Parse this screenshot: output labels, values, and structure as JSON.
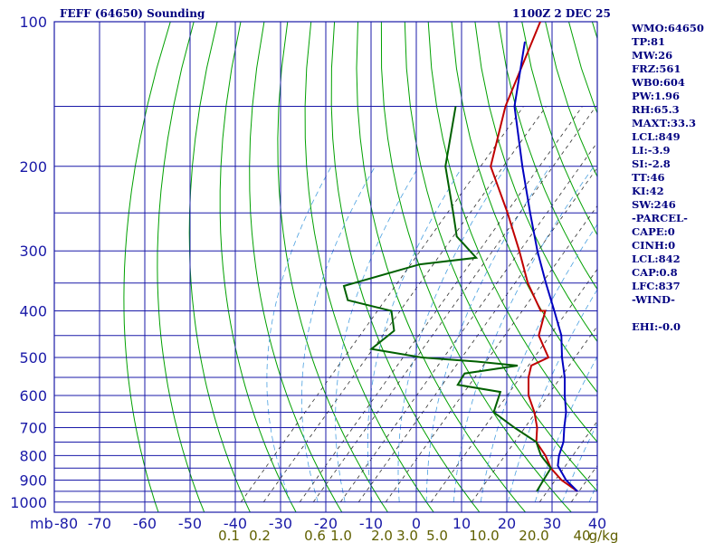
{
  "header": {
    "title": "FEFF (64650) Sounding",
    "time": "1100Z  2 DEC 25"
  },
  "stats": [
    "WMO:64650",
    "TP:81",
    "MW:26",
    "FRZ:561",
    "WB0:604",
    "PW:1.96",
    "RH:65.3",
    "MAXT:33.3",
    "LCL:849",
    "LI:-3.9",
    "SI:-2.8",
    "TT:46",
    "KI:42",
    "SW:246",
    "-PARCEL-",
    "CAPE:0",
    "CINH:0",
    "LCL:842",
    "CAP:0.8",
    "LFC:837",
    "-WIND-",
    "",
    "EHI:-0.0"
  ],
  "colors": {
    "grid": "#1a1aa8",
    "dry_adiabat": "#00a000",
    "mixing_ratio": "#303030",
    "moist_adiabat": "#4aa0e0",
    "temperature": "#c00000",
    "dewpoint": "#006000",
    "parcel": "#0000c0",
    "axis_text": "#1a1aa8",
    "mr_text": "#606000"
  },
  "chart_data": {
    "type": "line",
    "title": "FEFF (64650) Sounding",
    "x_label_prefix": "mb",
    "y_ticks": [
      "100",
      "200",
      "300",
      "400",
      "500",
      "600",
      "700",
      "800",
      "900",
      "1000"
    ],
    "x_ticks": [
      "-80",
      "-70",
      "-60",
      "-50",
      "-40",
      "-30",
      "-20",
      "-10",
      "0",
      "10",
      "20",
      "30",
      "40"
    ],
    "mixing_ratio_labels": [
      "0.1",
      "0.2",
      "0.6",
      "1.0",
      "2.0",
      "3.0",
      "5.0",
      "10.0",
      "20.0",
      "40",
      "g/kg"
    ],
    "xlim": [
      -80,
      40
    ],
    "ylim": [
      1000,
      100
    ],
    "series": [
      {
        "key": "temperature",
        "points": [
          [
            -81,
            100
          ],
          [
            -70,
            150
          ],
          [
            -60,
            200
          ],
          [
            -46,
            250
          ],
          [
            -35,
            300
          ],
          [
            -26,
            350
          ],
          [
            -17,
            400
          ],
          [
            -16,
            400
          ],
          [
            -12,
            450
          ],
          [
            -5,
            500
          ],
          [
            -7,
            520
          ],
          [
            -5,
            550
          ],
          [
            -1,
            600
          ],
          [
            4,
            650
          ],
          [
            8,
            700
          ],
          [
            11,
            750
          ],
          [
            16,
            800
          ],
          [
            20,
            850
          ],
          [
            25,
            900
          ],
          [
            31,
            950
          ]
        ]
      },
      {
        "key": "dewpoint",
        "points": [
          [
            -81,
            150
          ],
          [
            -70,
            200
          ],
          [
            -58,
            250
          ],
          [
            -52,
            280
          ],
          [
            -43,
            310
          ],
          [
            -54,
            320
          ],
          [
            -66,
            355
          ],
          [
            -62,
            380
          ],
          [
            -50,
            400
          ],
          [
            -45,
            440
          ],
          [
            -46,
            480
          ],
          [
            -33,
            500
          ],
          [
            -20,
            510
          ],
          [
            -10,
            520
          ],
          [
            -20,
            540
          ],
          [
            -19,
            570
          ],
          [
            -8,
            590
          ],
          [
            -5,
            650
          ],
          [
            3,
            700
          ],
          [
            11,
            750
          ],
          [
            15,
            800
          ],
          [
            20,
            850
          ],
          [
            21,
            900
          ],
          [
            22,
            950
          ]
        ]
      },
      {
        "key": "parcel",
        "points": [
          [
            -80,
            110
          ],
          [
            -68,
            150
          ],
          [
            -53,
            200
          ],
          [
            -41,
            250
          ],
          [
            -31,
            300
          ],
          [
            -22,
            350
          ],
          [
            -14,
            400
          ],
          [
            -7,
            450
          ],
          [
            -2,
            500
          ],
          [
            3,
            550
          ],
          [
            7,
            600
          ],
          [
            11,
            650
          ],
          [
            14,
            700
          ],
          [
            17,
            750
          ],
          [
            19,
            800
          ],
          [
            21,
            840
          ],
          [
            26,
            900
          ],
          [
            31,
            950
          ]
        ]
      }
    ]
  }
}
